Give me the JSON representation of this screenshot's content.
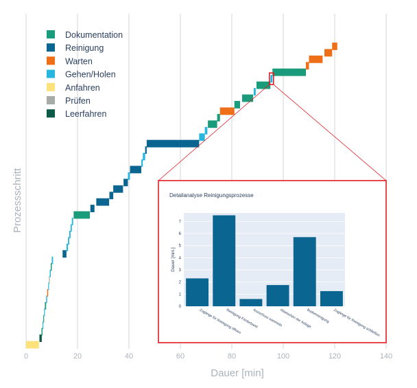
{
  "colors": {
    "Dokumentation": "#1a9b7b",
    "Reinigung": "#0a6590",
    "Warten": "#ee6f17",
    "Gehen/Holen": "#27b6de",
    "Anfahren": "#fbe27a",
    "Prüfen": "#a7aca9",
    "Leerfahren": "#0b5a48",
    "grid": "#cccccc",
    "axis_text": "#aab3bb",
    "inset_border": "#e11b22",
    "inset_bg": "#e6ecf5"
  },
  "legend_items": [
    "Dokumentation",
    "Reinigung",
    "Warten",
    "Gehen/Holen",
    "Anfahren",
    "Prüfen",
    "Leerfahren"
  ],
  "chart_data": [
    {
      "type": "gantt",
      "xlabel": "Dauer [min]",
      "ylabel": "Prozessschritt",
      "xlim": [
        0,
        140
      ],
      "xticks": [
        0,
        20,
        40,
        60,
        80,
        100,
        120,
        140
      ],
      "grid": true,
      "legend": "top-left",
      "highlight": {
        "step": 41,
        "category": "Reinigung"
      },
      "steps": [
        {
          "c": "Anfahren",
          "s": 0,
          "d": 5
        },
        {
          "c": "Leerfahren",
          "s": 5.2,
          "d": 0.9
        },
        {
          "c": "Dokumentation",
          "s": 6.0,
          "d": 0.4
        },
        {
          "c": "Gehen/Holen",
          "s": 6.4,
          "d": 0.3
        },
        {
          "c": "Dokumentation",
          "s": 6.7,
          "d": 0.3
        },
        {
          "c": "Gehen/Holen",
          "s": 7.0,
          "d": 0.3
        },
        {
          "c": "Dokumentation",
          "s": 7.3,
          "d": 0.5
        },
        {
          "c": "Gehen/Holen",
          "s": 7.8,
          "d": 0.4
        },
        {
          "c": "Warten",
          "s": 8.2,
          "d": 0.4
        },
        {
          "c": "Gehen/Holen",
          "s": 8.6,
          "d": 0.3
        },
        {
          "c": "Prüfen",
          "s": 8.9,
          "d": 0.3
        },
        {
          "c": "Gehen/Holen",
          "s": 9.2,
          "d": 0.4
        },
        {
          "c": "Dokumentation",
          "s": 9.6,
          "d": 0.4
        },
        {
          "c": "Gehen/Holen",
          "s": 10.0,
          "d": 0.5
        },
        {
          "c": "Reinigung",
          "s": 14.2,
          "d": 1.5
        },
        {
          "c": "Gehen/Holen",
          "s": 15.7,
          "d": 0.6
        },
        {
          "c": "Gehen/Holen",
          "s": 16.3,
          "d": 0.5
        },
        {
          "c": "Gehen/Holen",
          "s": 16.8,
          "d": 0.5
        },
        {
          "c": "Gehen/Holen",
          "s": 17.3,
          "d": 0.5
        },
        {
          "c": "Gehen/Holen",
          "s": 17.8,
          "d": 0.5
        },
        {
          "c": "Dokumentation",
          "s": 18.5,
          "d": 6.3
        },
        {
          "c": "Reinigung",
          "s": 25.0,
          "d": 1.6
        },
        {
          "c": "Reinigung",
          "s": 27.3,
          "d": 5.0
        },
        {
          "c": "Reinigung",
          "s": 32.4,
          "d": 1.5
        },
        {
          "c": "Reinigung",
          "s": 33.9,
          "d": 3.8
        },
        {
          "c": "Reinigung",
          "s": 37.9,
          "d": 1.7
        },
        {
          "c": "Gehen/Holen",
          "s": 39.6,
          "d": 0.8
        },
        {
          "c": "Reinigung",
          "s": 40.4,
          "d": 4.4
        },
        {
          "c": "Gehen/Holen",
          "s": 44.8,
          "d": 0.6
        },
        {
          "c": "Gehen/Holen",
          "s": 45.4,
          "d": 0.9
        },
        {
          "c": "Reinigung",
          "s": 46.3,
          "d": 0.6
        },
        {
          "c": "Reinigung",
          "s": 46.9,
          "d": 20.4
        },
        {
          "c": "Gehen/Holen",
          "s": 67.3,
          "d": 2.2
        },
        {
          "c": "Gehen/Holen",
          "s": 69.5,
          "d": 1.0
        },
        {
          "c": "Dokumentation",
          "s": 70.7,
          "d": 3.6
        },
        {
          "c": "Dokumentation",
          "s": 74.3,
          "d": 1.1
        },
        {
          "c": "Warten",
          "s": 75.4,
          "d": 5.6
        },
        {
          "c": "Dokumentation",
          "s": 81.0,
          "d": 2.2
        },
        {
          "c": "Dokumentation",
          "s": 84.0,
          "d": 4.3
        },
        {
          "c": "Gehen/Holen",
          "s": 88.5,
          "d": 0.8
        },
        {
          "c": "Dokumentation",
          "s": 89.6,
          "d": 5.4
        },
        {
          "c": "Gehen/Holen",
          "s": 95.0,
          "d": 0.8
        },
        {
          "c": "Dokumentation",
          "s": 95.8,
          "d": 13.0
        },
        {
          "c": "Warten",
          "s": 108.8,
          "d": 1.2
        },
        {
          "c": "Warten",
          "s": 110.0,
          "d": 5.3
        },
        {
          "c": "Warten",
          "s": 116.0,
          "d": 3.0
        },
        {
          "c": "Warten",
          "s": 119.0,
          "d": 2.0
        }
      ]
    },
    {
      "type": "bar",
      "title": "Detailanalyse Reinigungsprozesse",
      "xlabel": "",
      "ylabel": "Dauer [min.]",
      "ylim": [
        0,
        7.7
      ],
      "yticks": [
        0,
        1,
        2,
        3,
        4,
        5,
        6,
        7
      ],
      "grid": true,
      "categories": [
        "Zugänge für Reinigung öffnen",
        "Reinigung Förderband",
        "Ausschuss sammeln",
        "Abwischen der Anlage",
        "Bodenreinigung",
        "Zugänge für Reinigung schließen"
      ],
      "values": [
        2.3,
        7.5,
        0.6,
        1.75,
        5.7,
        1.25
      ]
    }
  ]
}
